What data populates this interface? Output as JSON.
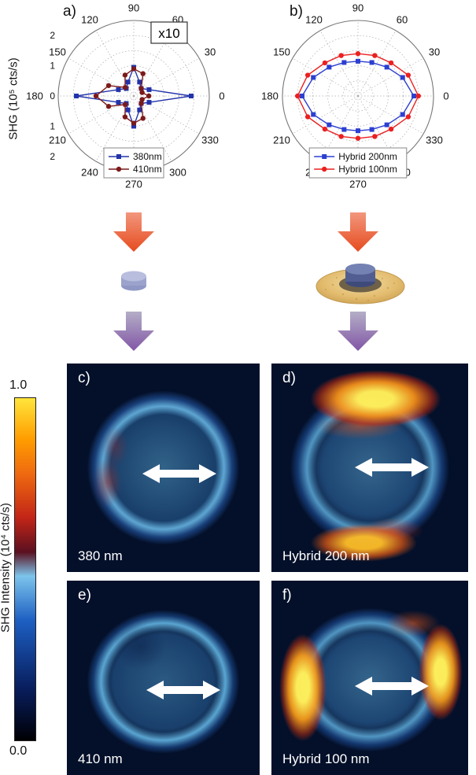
{
  "panels": {
    "a": {
      "label": "a)"
    },
    "b": {
      "label": "b)"
    },
    "c": {
      "label": "c)",
      "caption": "380 nm"
    },
    "d": {
      "label": "d)",
      "caption": "Hybrid 200 nm"
    },
    "e": {
      "label": "e)",
      "caption": "410 nm"
    },
    "f": {
      "label": "f)",
      "caption": "Hybrid 100 nm"
    }
  },
  "polar_axis_label": "SHG (10⁵ cts/s)",
  "colorbar": {
    "label": "SHG Intensity (10⁴ cts/s)",
    "max_tick": "1.0",
    "min_tick": "0.0"
  },
  "icons": {
    "left_schematic": "bare-nanodisk",
    "right_schematic": "hybrid-nanodisk-on-gold-ring",
    "down_arrow_red": "#e64b1e",
    "down_arrow_purple": "#8256a6",
    "polarization_arrow": "white-double-arrow"
  },
  "chart_data": [
    {
      "type": "line",
      "subtype": "polar",
      "panel": "a)",
      "ylabel": "SHG (10⁵ cts/s)",
      "annotation": "x10",
      "rmax": 2.5,
      "grid": true,
      "legend_position": "bottom-inside",
      "angle_labels": [
        0,
        30,
        60,
        90,
        120,
        150,
        180,
        210,
        240,
        270,
        300,
        330
      ],
      "radial_tick_labels": [
        {
          "label": "2",
          "r": 2
        },
        {
          "label": "1",
          "r": 1
        },
        {
          "label": "0",
          "r": 0
        },
        {
          "label": "1",
          "r": -1
        },
        {
          "label": "2",
          "r": -2
        }
      ],
      "angles_deg": [
        0,
        22.5,
        45,
        67.5,
        90,
        112.5,
        135,
        157.5,
        180,
        202.5,
        225,
        247.5,
        270,
        292.5,
        315,
        337.5
      ],
      "series": [
        {
          "name": "380nm",
          "color": "#2233aa",
          "marker": "square",
          "values": [
            1.9,
            0.55,
            0.35,
            0.5,
            0.95,
            0.5,
            0.35,
            0.55,
            1.9,
            0.55,
            0.35,
            0.5,
            1.0,
            0.5,
            0.35,
            0.55
          ]
        },
        {
          "name": "410nm",
          "color": "#7b1a1a",
          "marker": "circle",
          "values": [
            0.5,
            0.3,
            0.35,
            0.8,
            0.9,
            0.75,
            0.4,
            0.9,
            1.25,
            0.9,
            0.4,
            0.75,
            0.9,
            0.8,
            0.35,
            0.3
          ]
        }
      ]
    },
    {
      "type": "line",
      "subtype": "polar",
      "panel": "b)",
      "rmax": 2.5,
      "grid": true,
      "legend_position": "bottom-inside",
      "angle_labels": [
        0,
        30,
        60,
        90,
        120,
        150,
        180,
        210,
        240,
        270,
        300,
        330
      ],
      "angles_deg": [
        0,
        22.5,
        45,
        67.5,
        90,
        112.5,
        135,
        157.5,
        180,
        202.5,
        225,
        247.5,
        270,
        292.5,
        315,
        337.5
      ],
      "series": [
        {
          "name": "Hybrid 200nm",
          "color": "#2b3fd0",
          "marker": "square",
          "values": [
            1.85,
            1.6,
            1.35,
            1.2,
            1.15,
            1.2,
            1.35,
            1.6,
            1.85,
            1.6,
            1.35,
            1.2,
            1.15,
            1.2,
            1.35,
            1.6
          ]
        },
        {
          "name": "Hybrid 100nm",
          "color": "#ea2020",
          "marker": "circle",
          "values": [
            2.0,
            1.8,
            1.55,
            1.45,
            1.4,
            1.45,
            1.55,
            1.8,
            2.0,
            1.8,
            1.55,
            1.45,
            1.4,
            1.45,
            1.55,
            1.8
          ]
        }
      ]
    }
  ]
}
